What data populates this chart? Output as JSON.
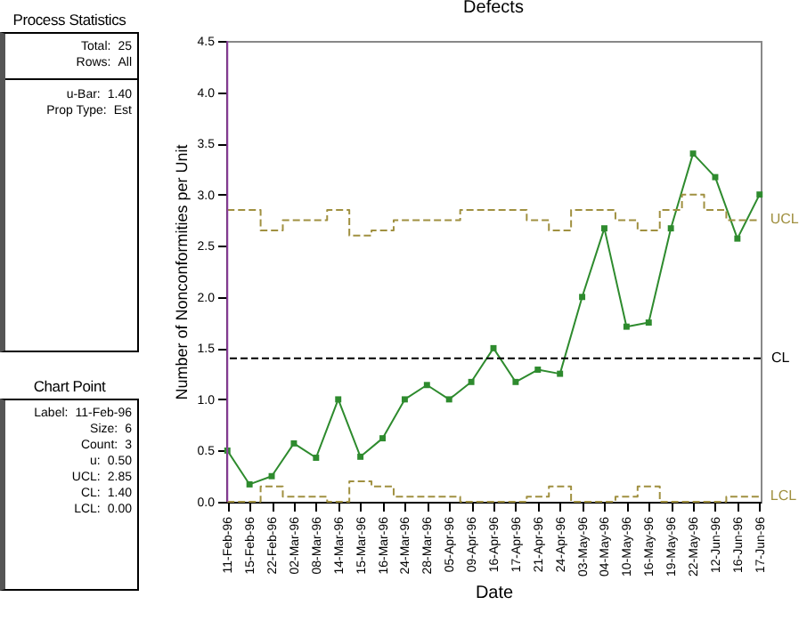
{
  "chart_data": [
    {
      "type": "other",
      "title": "Process Statistics",
      "annotations": [
        "Total:",
        "25",
        "Rows:",
        "All",
        "u-Bar:",
        "1.40",
        "Prop Type:",
        "Est"
      ]
    },
    {
      "type": "other",
      "title": "Chart Point",
      "annotations": [
        "Label:",
        "11-Feb-96",
        "Size:",
        "6",
        "Count:",
        "3",
        "u:",
        "0.50",
        "UCL:",
        "2.85",
        "CL:",
        "1.40",
        "LCL:",
        "0.00"
      ]
    },
    {
      "type": "line",
      "title": "Defects",
      "xlabel": "Date",
      "ylabel": "Number of Nonconformities per Unit",
      "grid": false,
      "categories": [
        "11-Feb-96",
        "15-Feb-96",
        "22-Feb-96",
        "02-Mar-96",
        "08-Mar-96",
        "14-Mar-96",
        "15-Mar-96",
        "16-Mar-96",
        "24-Mar-96",
        "28-Mar-96",
        "05-Apr-96",
        "09-Apr-96",
        "16-Apr-96",
        "17-Apr-96",
        "21-Apr-96",
        "24-Apr-96",
        "03-May-96",
        "04-May-96",
        "10-May-96",
        "16-May-96",
        "19-May-96",
        "22-May-96",
        "12-Jun-96",
        "16-Jun-96",
        "17-Jun-96"
      ],
      "ylim": [
        0,
        4.5
      ],
      "yticks": [
        {
          "value": 0,
          "label": "0.0"
        },
        {
          "value": 0.5,
          "label": "0.5"
        },
        {
          "value": 1,
          "label": "1.0"
        },
        {
          "value": 1.5,
          "label": "1.5"
        },
        {
          "value": 2,
          "label": "2.0"
        },
        {
          "value": 2.5,
          "label": "2.5"
        },
        {
          "value": 3,
          "label": "3.0"
        },
        {
          "value": 3.5,
          "label": "3.5"
        },
        {
          "value": 4,
          "label": "4.0"
        },
        {
          "value": 4.5,
          "label": "4.5"
        }
      ],
      "series": [
        {
          "type": "line",
          "color": "#2e8b2e",
          "marker": "square",
          "line_style": "solid",
          "values": [
            0.5,
            0.17,
            0.25,
            0.57,
            0.43,
            1.0,
            0.44,
            0.62,
            1.0,
            1.14,
            1.0,
            1.17,
            1.5,
            1.17,
            1.29,
            1.25,
            2.0,
            2.67,
            1.71,
            1.75,
            2.67,
            3.4,
            3.17,
            2.57,
            3.0
          ]
        },
        {
          "type": "step",
          "name": "UCL",
          "color": "#a09040",
          "marker": "none",
          "line_style": "dashed",
          "values": [
            2.85,
            2.85,
            2.65,
            2.75,
            2.75,
            2.85,
            2.6,
            2.65,
            2.75,
            2.75,
            2.75,
            2.85,
            2.85,
            2.85,
            2.75,
            2.65,
            2.85,
            2.85,
            2.75,
            2.65,
            2.85,
            3.0,
            2.85,
            2.75,
            2.75
          ]
        },
        {
          "type": "step",
          "name": "LCL",
          "color": "#a09040",
          "marker": "none",
          "line_style": "dashed",
          "values": [
            0,
            0,
            0.15,
            0.05,
            0.05,
            0,
            0.2,
            0.15,
            0.05,
            0.05,
            0.05,
            0,
            0,
            0,
            0.05,
            0.15,
            0,
            0,
            0.05,
            0.15,
            0,
            0,
            0,
            0.05,
            0.05
          ]
        }
      ],
      "ref_lines": [
        {
          "axis": "y",
          "value": 1.4,
          "label": "CL",
          "color": "#000000",
          "line_style": "dashed"
        },
        {
          "axis": "x",
          "value": "11-Feb-96",
          "label": null,
          "color": "#9040a0",
          "line_style": "solid"
        }
      ]
    }
  ]
}
